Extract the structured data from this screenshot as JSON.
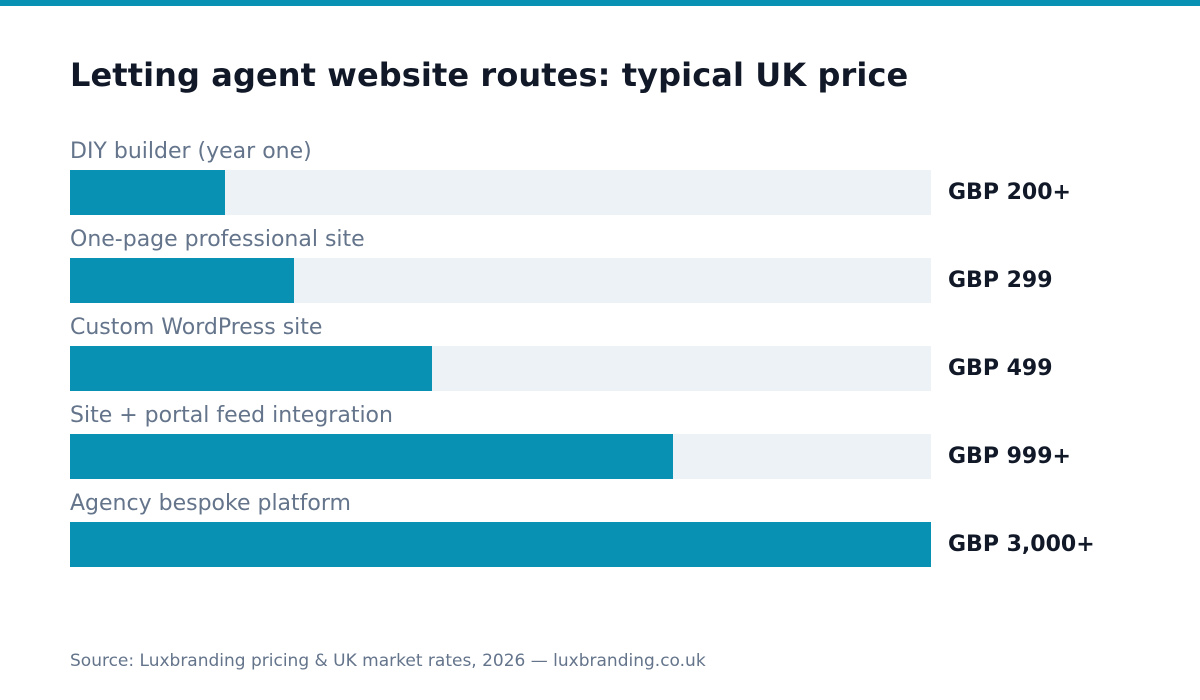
{
  "colors": {
    "accent": "#0891b2",
    "track": "#edf2f7",
    "title": "#111827",
    "label": "#64748b"
  },
  "chart_data": {
    "type": "bar",
    "orientation": "horizontal",
    "title": "Letting agent website routes: typical UK price",
    "categories": [
      "DIY builder (year one)",
      "One-page professional site",
      "Custom WordPress site",
      "Site + portal feed integration",
      "Agency bespoke platform"
    ],
    "values": [
      200,
      299,
      499,
      999,
      3000
    ],
    "value_labels": [
      "GBP 200+",
      "GBP 299",
      "GBP 499",
      "GBP 999+",
      "GBP 3,000+"
    ],
    "fill_fractions": [
      0.18,
      0.26,
      0.42,
      0.7,
      1.0
    ],
    "grid": false
  },
  "footer": {
    "source": "Source: Luxbranding pricing & UK market rates, 2026 — luxbranding.co.uk"
  }
}
